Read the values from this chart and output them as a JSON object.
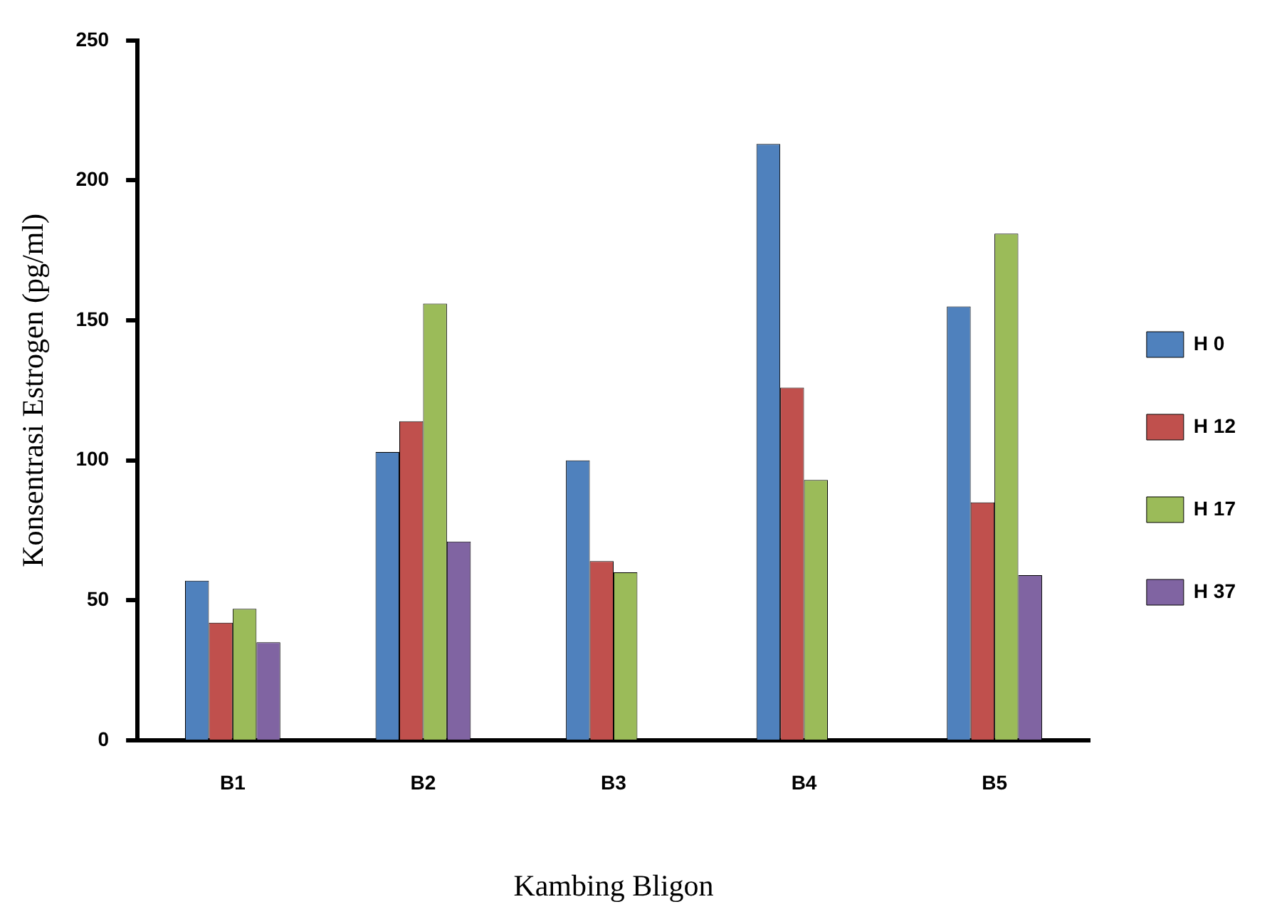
{
  "chart_data": {
    "type": "bar",
    "xlabel": "Kambing Bligon",
    "ylabel": "Konsentrasi Estrogen (pg/ml)",
    "categories": [
      "B1",
      "B2",
      "B3",
      "B4",
      "B5"
    ],
    "series": [
      {
        "name": "H 0",
        "color": "#4f81bd",
        "values": [
          57,
          103,
          100,
          213,
          155
        ]
      },
      {
        "name": "H 12",
        "color": "#c0504d",
        "values": [
          42,
          114,
          64,
          126,
          85
        ]
      },
      {
        "name": "H 17",
        "color": "#9bbb59",
        "values": [
          47,
          156,
          60,
          93,
          181
        ]
      },
      {
        "name": "H 37",
        "color": "#8064a2",
        "values": [
          35,
          71,
          null,
          null,
          59
        ]
      }
    ],
    "ylim": [
      0,
      250
    ],
    "yticks": [
      0,
      50,
      100,
      150,
      200,
      250
    ],
    "grid": false,
    "legend": "right"
  }
}
